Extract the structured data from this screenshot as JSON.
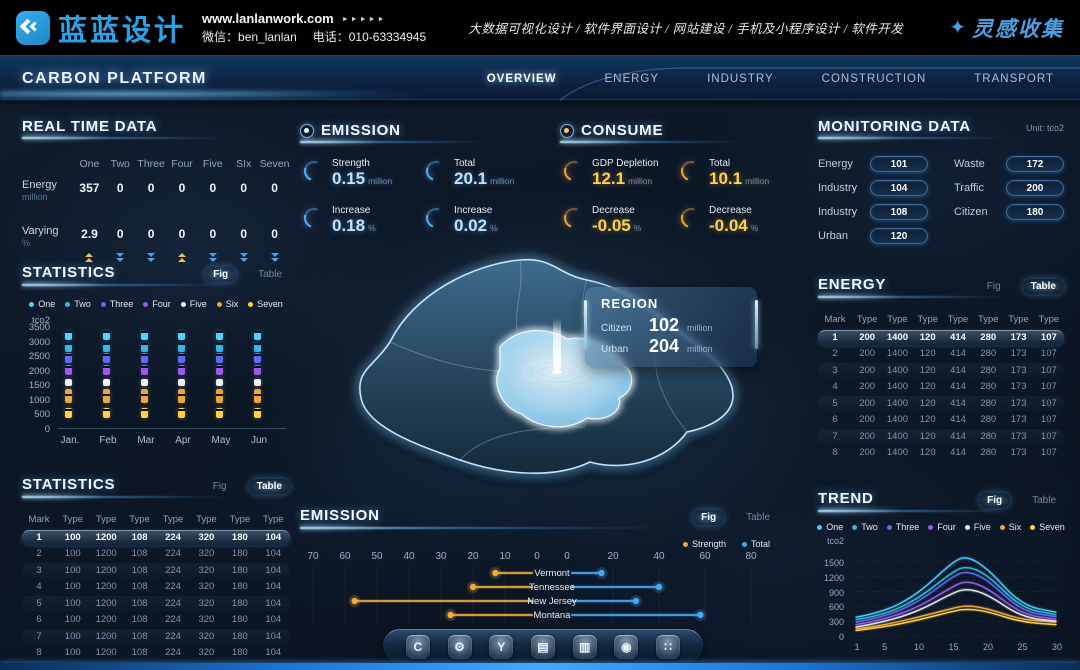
{
  "header": {
    "logo_text": "蓝蓝设计",
    "website": "www.lanlanwork.com",
    "website_arrows": "►►►►►",
    "wechat": "微信：ben_lanlan",
    "phone": "电话：010-63334945",
    "services": "大数据可视化设计 / 软件界面设计 / 网站建设 / 手机及小程序设计 / 软件开发",
    "collection": "灵感收集"
  },
  "nav": {
    "title": "CARBON PLATFORM",
    "items": [
      {
        "label": "OVERVIEW",
        "active": true
      },
      {
        "label": "ENERGY",
        "active": false
      },
      {
        "label": "INDUSTRY",
        "active": false
      },
      {
        "label": "CONSTRUCTION",
        "active": false
      },
      {
        "label": "TRANSPORT",
        "active": false
      }
    ]
  },
  "real_time": {
    "title": "REAL TIME DATA",
    "columns": [
      "One",
      "Two",
      "Three",
      "Four",
      "Five",
      "SIx",
      "Seven"
    ],
    "rows": [
      {
        "label": "Energy",
        "unit": "million",
        "values": [
          "357",
          "0",
          "0",
          "0",
          "0",
          "0",
          "0"
        ]
      },
      {
        "label": "Varying",
        "unit": "%",
        "values": [
          "2.9",
          "0",
          "0",
          "0",
          "0",
          "0",
          "0"
        ]
      }
    ],
    "trends": [
      "up",
      "down",
      "down",
      "up",
      "down",
      "down",
      "down"
    ]
  },
  "stats_fig": {
    "title": "STATISTICS",
    "fig_label": "Fig",
    "table_label": "Table",
    "active": "fig"
  },
  "stats_table": {
    "title": "STATISTICS",
    "fig_label": "Fig",
    "table_label": "Table",
    "active": "table",
    "headers": [
      "Mark",
      "Type",
      "Type",
      "Type",
      "Type",
      "Type",
      "Type",
      "Type"
    ],
    "rows": [
      [
        "1",
        "100",
        "1200",
        "108",
        "224",
        "320",
        "180",
        "104"
      ],
      [
        "2",
        "100",
        "1200",
        "108",
        "224",
        "320",
        "180",
        "104"
      ],
      [
        "3",
        "100",
        "1200",
        "108",
        "224",
        "320",
        "180",
        "104"
      ],
      [
        "4",
        "100",
        "1200",
        "108",
        "224",
        "320",
        "180",
        "104"
      ],
      [
        "5",
        "100",
        "1200",
        "108",
        "224",
        "320",
        "180",
        "104"
      ],
      [
        "6",
        "100",
        "1200",
        "108",
        "224",
        "320",
        "180",
        "104"
      ],
      [
        "7",
        "100",
        "1200",
        "108",
        "224",
        "320",
        "180",
        "104"
      ],
      [
        "8",
        "100",
        "1200",
        "108",
        "224",
        "320",
        "180",
        "104"
      ]
    ]
  },
  "emission": {
    "title": "EMISSION",
    "stats": [
      {
        "label": "Strength",
        "value": "0.15",
        "unit": "million"
      },
      {
        "label": "Total",
        "value": "20.1",
        "unit": "million"
      },
      {
        "label": "Increase",
        "value": "0.18",
        "unit": "%"
      },
      {
        "label": "Increase",
        "value": "0.02",
        "unit": "%"
      }
    ]
  },
  "consume": {
    "title": "CONSUME",
    "stats": [
      {
        "label": "GDP Depletion",
        "value": "12.1",
        "unit": "million"
      },
      {
        "label": "Total",
        "value": "10.1",
        "unit": "million"
      },
      {
        "label": "Decrease",
        "value": "-0.05",
        "unit": "%"
      },
      {
        "label": "Decrease",
        "value": "-0.04",
        "unit": "%"
      }
    ]
  },
  "region": {
    "title": "REGION",
    "rows": [
      {
        "label": "Citizen",
        "value": "102",
        "unit": "million"
      },
      {
        "label": "Urban",
        "value": "204",
        "unit": "million"
      }
    ]
  },
  "monitoring": {
    "title": "MONITORING DATA",
    "unit": "Unit: tco2",
    "left": [
      {
        "label": "Energy",
        "value": "101"
      },
      {
        "label": "Industry",
        "value": "104"
      },
      {
        "label": "Industry",
        "value": "108"
      },
      {
        "label": "Urban",
        "value": "120"
      }
    ],
    "right": [
      {
        "label": "Waste",
        "value": "172"
      },
      {
        "label": "Traffic",
        "value": "200"
      },
      {
        "label": "Citizen",
        "value": "180"
      }
    ]
  },
  "energy_table": {
    "title": "ENERGY",
    "fig_label": "Fig",
    "table_label": "Table",
    "active": "table",
    "headers": [
      "Mark",
      "Type",
      "Type",
      "Type",
      "Type",
      "Type",
      "Type",
      "Type"
    ],
    "rows": [
      [
        "1",
        "200",
        "1400",
        "120",
        "414",
        "280",
        "173",
        "107"
      ],
      [
        "2",
        "200",
        "1400",
        "120",
        "414",
        "280",
        "173",
        "107"
      ],
      [
        "3",
        "200",
        "1400",
        "120",
        "414",
        "280",
        "173",
        "107"
      ],
      [
        "4",
        "200",
        "1400",
        "120",
        "414",
        "280",
        "173",
        "107"
      ],
      [
        "5",
        "200",
        "1400",
        "120",
        "414",
        "280",
        "173",
        "107"
      ],
      [
        "6",
        "200",
        "1400",
        "120",
        "414",
        "280",
        "173",
        "107"
      ],
      [
        "7",
        "200",
        "1400",
        "120",
        "414",
        "280",
        "173",
        "107"
      ],
      [
        "8",
        "200",
        "1400",
        "120",
        "414",
        "280",
        "173",
        "107"
      ]
    ]
  },
  "trend_panel": {
    "title": "TREND",
    "fig_label": "Fig",
    "table_label": "Table",
    "active": "fig"
  },
  "emission_chart_panel": {
    "title": "EMISSION",
    "fig_label": "Fig",
    "table_label": "Table",
    "active": "fig"
  },
  "toolbar": {
    "icons": [
      {
        "name": "home-c-icon",
        "glyph": "C"
      },
      {
        "name": "gear-icon",
        "glyph": "⚙"
      },
      {
        "name": "y-badge-icon",
        "glyph": "Y"
      },
      {
        "name": "kiosk-icon",
        "glyph": "▤"
      },
      {
        "name": "chart-board-icon",
        "glyph": "▥"
      },
      {
        "name": "nut-icon",
        "glyph": "◉"
      },
      {
        "name": "apps-grid-icon",
        "glyph": "∷"
      }
    ]
  },
  "chart_data": [
    {
      "id": "statistics_monthly",
      "type": "bar",
      "title": "STATISTICS",
      "ylabel": "tco2",
      "ylim": [
        0,
        3500
      ],
      "yticks": [
        0,
        500,
        1000,
        1500,
        2000,
        2500,
        3000,
        3500
      ],
      "categories": [
        "Jan.",
        "Feb",
        "Mar",
        "Apr",
        "May",
        "Jun"
      ],
      "legend": [
        "One",
        "Two",
        "Three",
        "Four",
        "Five",
        "Six",
        "Seven"
      ],
      "colors": [
        "#4fd4ff",
        "#36b7e8",
        "#5d6cf0",
        "#9b59e8",
        "#eef2f6",
        "#f0a637",
        "#ffd23f"
      ],
      "segments_per_month": [
        {
          "name": "One",
          "range": [
            3050,
            3350
          ]
        },
        {
          "name": "Two",
          "range": [
            2650,
            2950
          ]
        },
        {
          "name": "Three",
          "range": [
            2250,
            2600
          ]
        },
        {
          "name": "Four",
          "range": [
            1850,
            2200
          ]
        },
        {
          "name": "Five",
          "range": [
            1450,
            1700
          ]
        },
        {
          "name": "Six",
          "range": [
            850,
            1350
          ]
        },
        {
          "name": "Seven",
          "range": [
            350,
            700
          ]
        }
      ]
    },
    {
      "id": "emission_by_state",
      "type": "bar",
      "orientation": "horizontal-diverging",
      "categories": [
        "Vermont",
        "Tennessee",
        "New Jersey",
        "Montana"
      ],
      "series": [
        {
          "name": "Strength",
          "color": "#f2a93b",
          "values": [
            13,
            20,
            57,
            27
          ]
        },
        {
          "name": "Total",
          "color": "#41aaf7",
          "values": [
            15,
            40,
            30,
            58
          ]
        }
      ],
      "left_axis_ticks": [
        70,
        60,
        50,
        40,
        30,
        20,
        10,
        0
      ],
      "right_axis_ticks": [
        0,
        20,
        40,
        60,
        80
      ]
    },
    {
      "id": "trend_lines",
      "type": "line",
      "title": "TREND",
      "ylabel": "tco2",
      "ylim": [
        0,
        1700
      ],
      "yticks": [
        0,
        300,
        600,
        900,
        1200,
        1500
      ],
      "x": [
        1,
        5,
        10,
        15,
        17,
        20,
        25,
        30
      ],
      "xticks": [
        1,
        5,
        10,
        15,
        20,
        25,
        30
      ],
      "legend_position": "top",
      "series": [
        {
          "name": "One",
          "color": "#45c8ff",
          "values": [
            380,
            480,
            850,
            1500,
            1620,
            1380,
            620,
            480
          ]
        },
        {
          "name": "Two",
          "color": "#2fb8d8",
          "values": [
            330,
            420,
            750,
            1300,
            1420,
            1250,
            560,
            430
          ]
        },
        {
          "name": "Three",
          "color": "#5d6cf0",
          "values": [
            280,
            380,
            680,
            1200,
            1320,
            1150,
            500,
            390
          ]
        },
        {
          "name": "Four",
          "color": "#9b59e8",
          "values": [
            230,
            330,
            580,
            1000,
            1120,
            980,
            440,
            340
          ]
        },
        {
          "name": "Five",
          "color": "#dfe7ee",
          "values": [
            180,
            280,
            500,
            870,
            960,
            850,
            380,
            300
          ]
        },
        {
          "name": "Six",
          "color": "#f0a637",
          "values": [
            140,
            220,
            380,
            560,
            620,
            560,
            330,
            280
          ]
        },
        {
          "name": "Seven",
          "color": "#ffd23f",
          "values": [
            110,
            180,
            320,
            500,
            550,
            500,
            280,
            230
          ]
        }
      ]
    }
  ]
}
